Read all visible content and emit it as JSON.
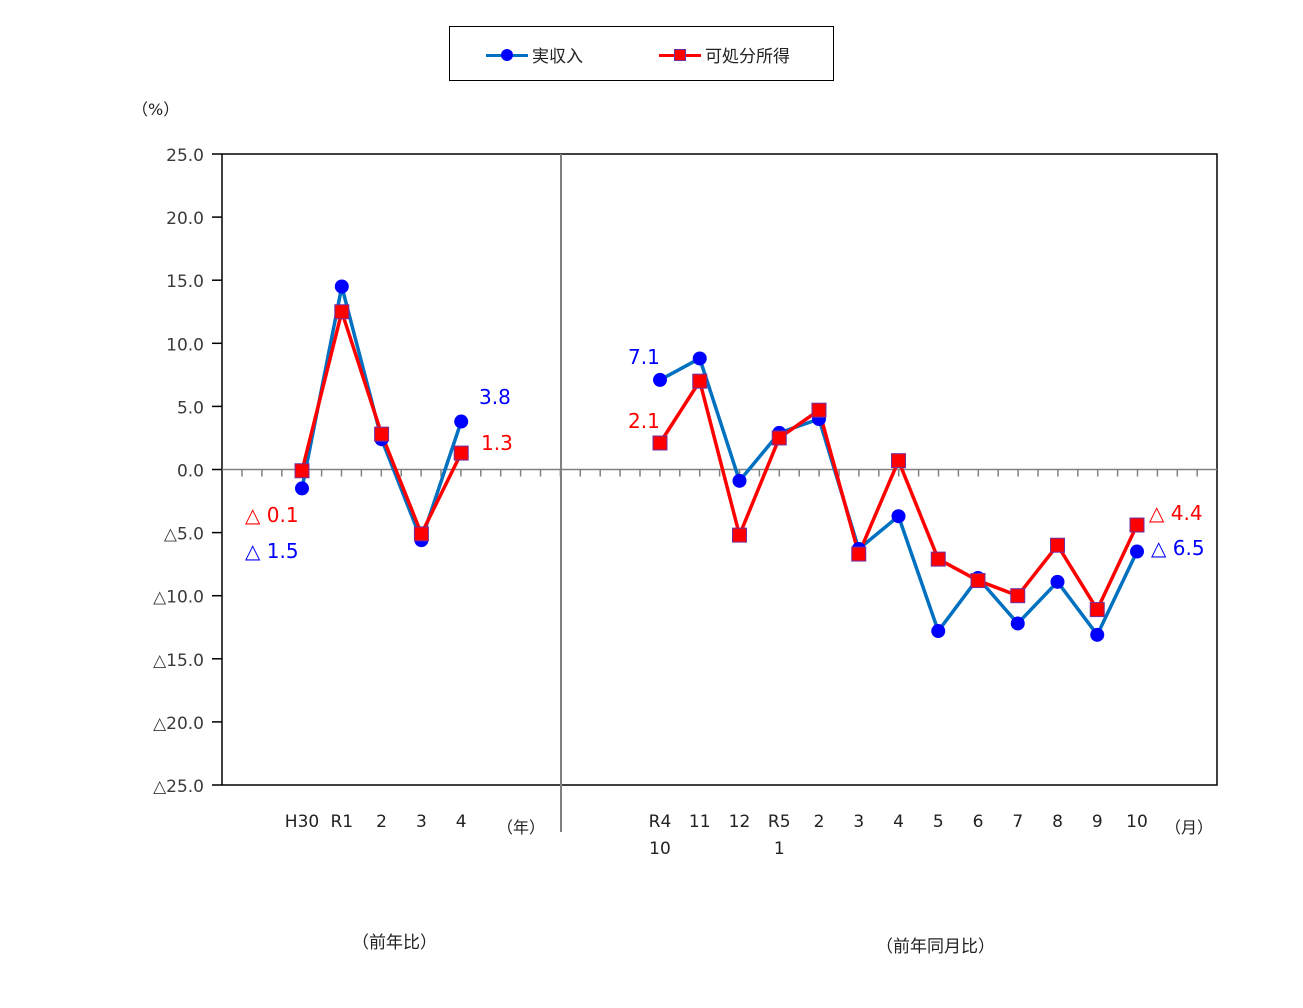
{
  "legend": {
    "items": [
      {
        "label": "実収入",
        "color": "#0070C0",
        "marker_color": "#0000FF",
        "marker": "circle"
      },
      {
        "label": "可処分所得",
        "color": "#FF0000",
        "marker_color": "#FF0000",
        "marker": "square"
      }
    ]
  },
  "axis": {
    "unit_label": "（%）",
    "y_ticks": [
      "25.0",
      "20.0",
      "15.0",
      "10.0",
      "5.0",
      "0.0",
      "△5.0",
      "△10.0",
      "△15.0",
      "△20.0",
      "△25.0"
    ],
    "left_x_unit": "（年）",
    "right_x_unit": "（月）"
  },
  "captions": {
    "left": "（前年比）",
    "right": "（前年同月比）"
  },
  "annotations": {
    "left_start_red": "△ 0.1",
    "left_start_blue": "△ 1.5",
    "left_end_blue": "3.8",
    "left_end_red": "1.3",
    "right_start_blue": "7.1",
    "right_start_red": "2.1",
    "right_end_red": "△ 4.4",
    "right_end_blue": "△ 6.5"
  },
  "chart_data": [
    {
      "type": "line",
      "title": "前年比",
      "xlabel": "（年）",
      "ylabel": "（%）",
      "ylim": [
        -25,
        25
      ],
      "categories": [
        "H30",
        "R1",
        "2",
        "3",
        "4"
      ],
      "series": [
        {
          "name": "実収入",
          "values": [
            -1.5,
            14.5,
            2.4,
            -5.6,
            3.8
          ]
        },
        {
          "name": "可処分所得",
          "values": [
            -0.1,
            12.5,
            2.8,
            -5.1,
            1.3
          ]
        }
      ],
      "grid": false,
      "legend_position": "top"
    },
    {
      "type": "line",
      "title": "前年同月比",
      "xlabel": "（月）",
      "ylabel": "（%）",
      "ylim": [
        -25,
        25
      ],
      "categories": [
        "R4\n10",
        "11",
        "12",
        "R5\n1",
        "2",
        "3",
        "4",
        "5",
        "6",
        "7",
        "8",
        "9",
        "10"
      ],
      "series": [
        {
          "name": "実収入",
          "values": [
            7.1,
            8.8,
            -0.9,
            2.9,
            4.0,
            -6.3,
            -3.7,
            -12.8,
            -8.6,
            -12.2,
            -8.9,
            -13.1,
            -6.5
          ]
        },
        {
          "name": "可処分所得",
          "values": [
            2.1,
            7.0,
            -5.2,
            2.5,
            4.7,
            -6.7,
            0.7,
            -7.1,
            -8.8,
            -10.0,
            -6.0,
            -11.1,
            -4.4
          ]
        }
      ],
      "grid": false,
      "legend_position": "top"
    }
  ]
}
